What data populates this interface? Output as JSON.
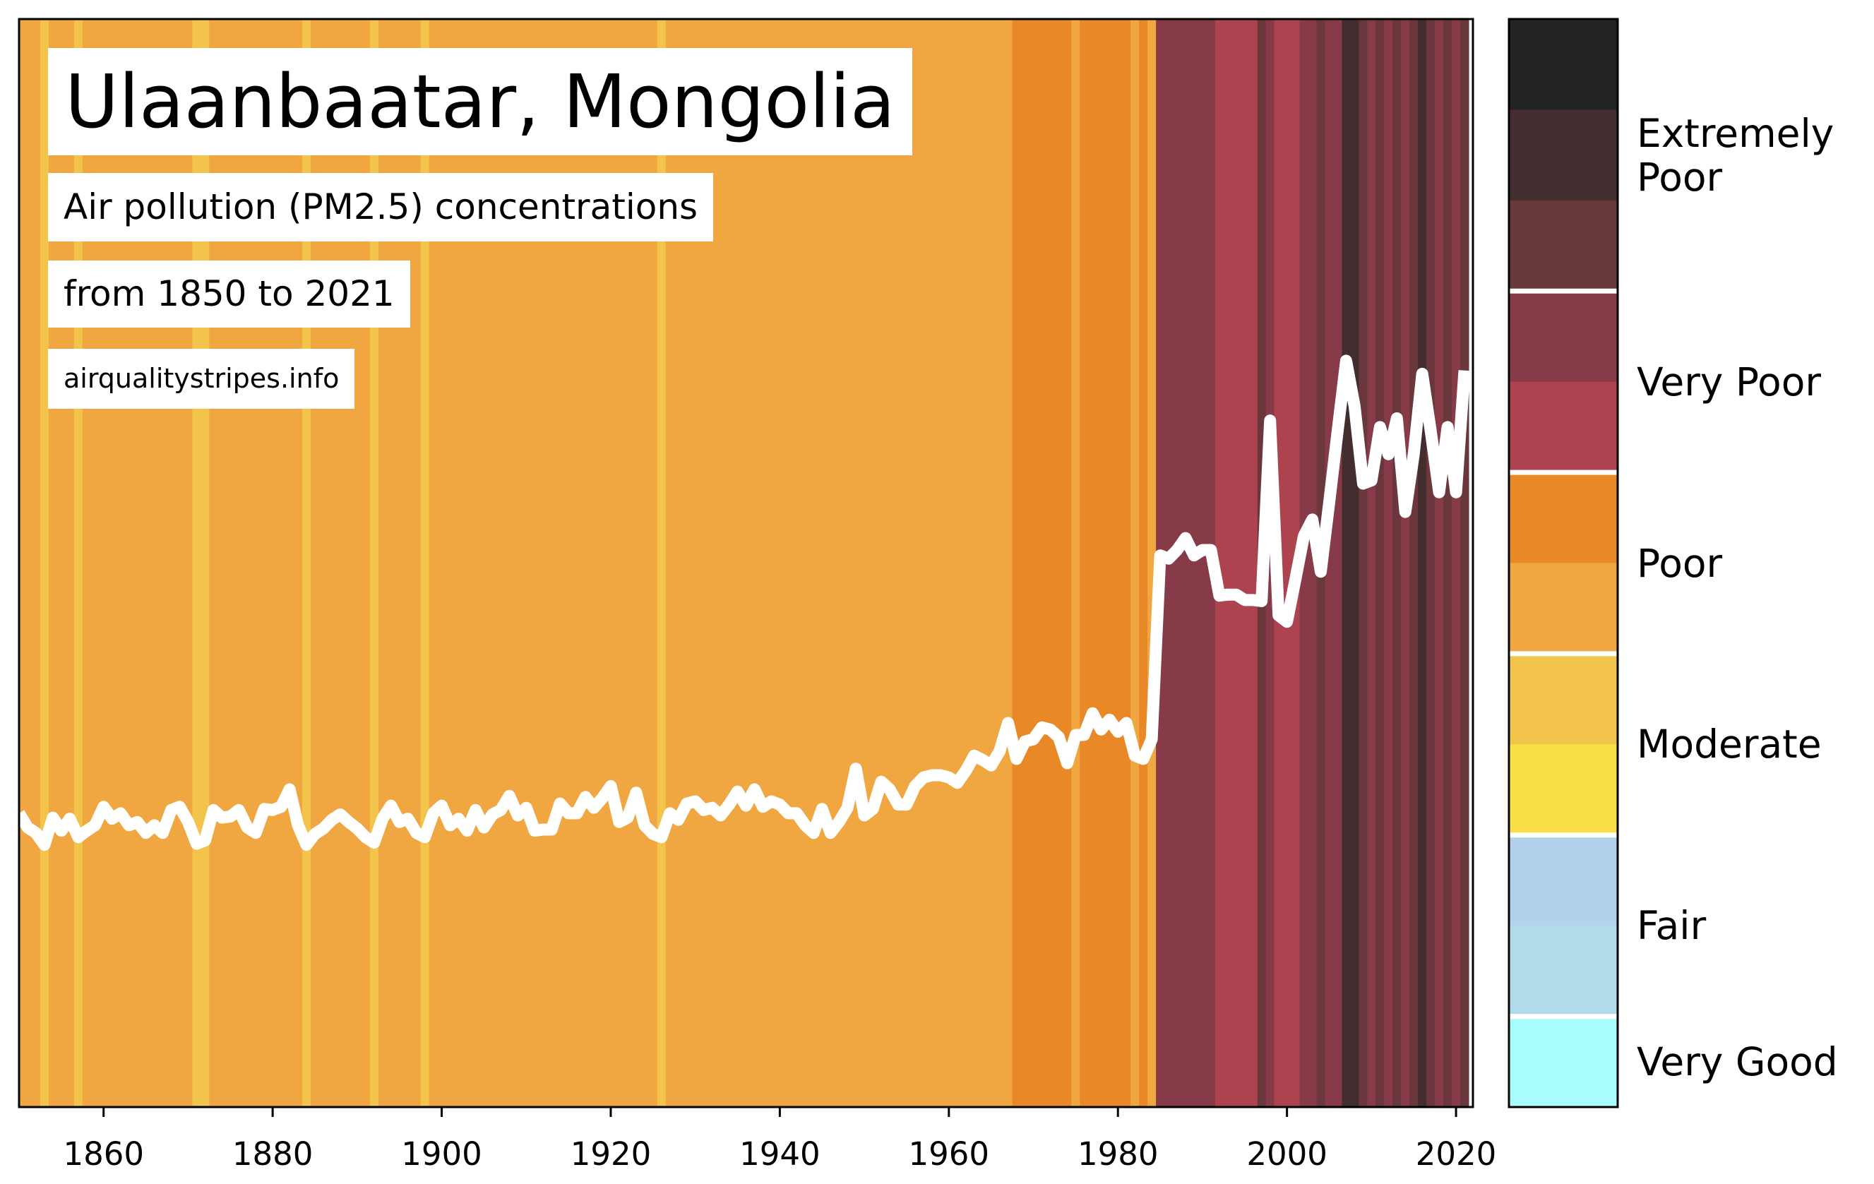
{
  "chart_data": {
    "type": "stripes-line",
    "title": "Ulaanbaatar, Mongolia",
    "subtitle": "Air pollution (PM2.5) concentrations",
    "period": "from 1850 to 2021",
    "source": "airqualitystripes.info",
    "xlim": [
      1850,
      2022
    ],
    "ylim": [
      0,
      100
    ],
    "xticks": [
      1860,
      1880,
      1900,
      1920,
      1940,
      1960,
      1980,
      2000,
      2020
    ],
    "x": [
      1850,
      1851,
      1852,
      1853,
      1854,
      1855,
      1856,
      1857,
      1858,
      1859,
      1860,
      1861,
      1862,
      1863,
      1864,
      1865,
      1866,
      1867,
      1868,
      1869,
      1870,
      1871,
      1872,
      1873,
      1874,
      1875,
      1876,
      1877,
      1878,
      1879,
      1880,
      1881,
      1882,
      1883,
      1884,
      1885,
      1886,
      1887,
      1888,
      1889,
      1890,
      1891,
      1892,
      1893,
      1894,
      1895,
      1896,
      1897,
      1898,
      1899,
      1900,
      1901,
      1902,
      1903,
      1904,
      1905,
      1906,
      1907,
      1908,
      1909,
      1910,
      1911,
      1912,
      1913,
      1914,
      1915,
      1916,
      1917,
      1918,
      1919,
      1920,
      1921,
      1922,
      1923,
      1924,
      1925,
      1926,
      1927,
      1928,
      1929,
      1930,
      1931,
      1932,
      1933,
      1934,
      1935,
      1936,
      1937,
      1938,
      1939,
      1940,
      1941,
      1942,
      1943,
      1944,
      1945,
      1946,
      1947,
      1948,
      1949,
      1950,
      1951,
      1952,
      1953,
      1954,
      1955,
      1956,
      1957,
      1958,
      1959,
      1960,
      1961,
      1962,
      1963,
      1964,
      1965,
      1966,
      1967,
      1968,
      1969,
      1970,
      1971,
      1972,
      1973,
      1974,
      1975,
      1976,
      1977,
      1978,
      1979,
      1980,
      1981,
      1982,
      1983,
      1984,
      1985,
      1986,
      1987,
      1988,
      1989,
      1990,
      1991,
      1992,
      1993,
      1994,
      1995,
      1996,
      1997,
      1998,
      1999,
      2000,
      2001,
      2002,
      2003,
      2004,
      2005,
      2006,
      2007,
      2008,
      2009,
      2010,
      2011,
      2012,
      2013,
      2014,
      2015,
      2016,
      2017,
      2018,
      2019,
      2020,
      2021
    ],
    "series": [
      {
        "color": "#ffffff",
        "values": [
          27.0,
          25.7,
          25.2,
          24.1,
          26.6,
          25.4,
          26.5,
          24.8,
          25.4,
          25.9,
          27.6,
          26.5,
          27.0,
          25.9,
          26.2,
          25.2,
          25.9,
          25.2,
          27.3,
          27.6,
          26.2,
          24.2,
          24.5,
          27.3,
          26.6,
          26.7,
          27.3,
          25.7,
          25.2,
          27.4,
          27.3,
          27.6,
          29.2,
          25.9,
          24.1,
          25.1,
          25.6,
          26.4,
          26.9,
          26.2,
          25.6,
          24.8,
          24.3,
          26.5,
          27.7,
          26.2,
          26.5,
          25.2,
          24.8,
          27.0,
          27.7,
          25.9,
          26.5,
          25.4,
          27.3,
          25.7,
          26.9,
          27.3,
          28.6,
          26.8,
          27.5,
          25.4,
          25.5,
          25.5,
          27.9,
          27.0,
          27.0,
          28.5,
          27.5,
          28.4,
          29.5,
          26.2,
          26.6,
          28.9,
          25.9,
          25.1,
          24.8,
          27.0,
          26.4,
          27.9,
          28.1,
          27.3,
          27.5,
          26.8,
          27.8,
          29.0,
          27.7,
          29.2,
          27.6,
          28.1,
          27.8,
          27.0,
          27.0,
          25.9,
          25.2,
          27.4,
          25.2,
          26.2,
          27.5,
          31.1,
          26.8,
          27.4,
          29.9,
          29.2,
          27.8,
          27.8,
          29.5,
          30.3,
          30.5,
          30.5,
          30.3,
          29.8,
          30.9,
          32.3,
          31.9,
          31.4,
          32.7,
          35.3,
          32.0,
          33.6,
          33.8,
          34.9,
          34.7,
          34.0,
          31.6,
          34.2,
          34.2,
          36.2,
          34.7,
          35.6,
          34.5,
          35.3,
          32.3,
          32.0,
          33.8,
          50.7,
          50.4,
          51.2,
          52.3,
          50.7,
          51.2,
          51.2,
          47.0,
          47.1,
          47.1,
          46.6,
          46.6,
          46.5,
          63.1,
          45.2,
          44.6,
          48.5,
          52.5,
          54.0,
          49.2,
          55.6,
          62.2,
          68.6,
          64.4,
          57.3,
          57.6,
          62.5,
          60.0,
          63.3,
          54.7,
          60.0,
          67.4,
          62.2,
          56.5,
          62.5,
          56.5,
          67.7
        ]
      }
    ],
    "stripes": [
      {
        "start": 1850,
        "end": 1852,
        "color": "#f0a742"
      },
      {
        "start": 1853,
        "end": 1853,
        "color": "#f2c44b"
      },
      {
        "start": 1854,
        "end": 1856,
        "color": "#f0a742"
      },
      {
        "start": 1857,
        "end": 1857,
        "color": "#f2c44b"
      },
      {
        "start": 1858,
        "end": 1870,
        "color": "#f0a742"
      },
      {
        "start": 1871,
        "end": 1872,
        "color": "#f2c44b"
      },
      {
        "start": 1873,
        "end": 1883,
        "color": "#f0a742"
      },
      {
        "start": 1884,
        "end": 1884,
        "color": "#f2c44b"
      },
      {
        "start": 1885,
        "end": 1891,
        "color": "#f0a742"
      },
      {
        "start": 1892,
        "end": 1892,
        "color": "#f2c44b"
      },
      {
        "start": 1893,
        "end": 1897,
        "color": "#f0a742"
      },
      {
        "start": 1898,
        "end": 1898,
        "color": "#f2c44b"
      },
      {
        "start": 1899,
        "end": 1925,
        "color": "#f0a742"
      },
      {
        "start": 1926,
        "end": 1926,
        "color": "#f2c44b"
      },
      {
        "start": 1927,
        "end": 1967,
        "color": "#f0a742"
      },
      {
        "start": 1968,
        "end": 1974,
        "color": "#e88826"
      },
      {
        "start": 1975,
        "end": 1975,
        "color": "#f0a742"
      },
      {
        "start": 1976,
        "end": 1981,
        "color": "#e88826"
      },
      {
        "start": 1982,
        "end": 1982,
        "color": "#f0a742"
      },
      {
        "start": 1983,
        "end": 1983,
        "color": "#e88826"
      },
      {
        "start": 1984,
        "end": 1984,
        "color": "#f0a742"
      },
      {
        "start": 1985,
        "end": 1991,
        "color": "#873a48"
      },
      {
        "start": 1992,
        "end": 1996,
        "color": "#ae4350"
      },
      {
        "start": 1997,
        "end": 1997,
        "color": "#6a383c"
      },
      {
        "start": 1998,
        "end": 1998,
        "color": "#873a48"
      },
      {
        "start": 1999,
        "end": 2001,
        "color": "#ae4350"
      },
      {
        "start": 2002,
        "end": 2003,
        "color": "#873a48"
      },
      {
        "start": 2004,
        "end": 2004,
        "color": "#6a383c"
      },
      {
        "start": 2005,
        "end": 2006,
        "color": "#873a48"
      },
      {
        "start": 2007,
        "end": 2008,
        "color": "#432d2f"
      },
      {
        "start": 2009,
        "end": 2009,
        "color": "#6a383c"
      },
      {
        "start": 2010,
        "end": 2010,
        "color": "#873a48"
      },
      {
        "start": 2011,
        "end": 2011,
        "color": "#6a383c"
      },
      {
        "start": 2012,
        "end": 2012,
        "color": "#873a48"
      },
      {
        "start": 2013,
        "end": 2013,
        "color": "#6a383c"
      },
      {
        "start": 2014,
        "end": 2014,
        "color": "#873a48"
      },
      {
        "start": 2015,
        "end": 2015,
        "color": "#6a383c"
      },
      {
        "start": 2016,
        "end": 2016,
        "color": "#432d2f"
      },
      {
        "start": 2017,
        "end": 2017,
        "color": "#6a383c"
      },
      {
        "start": 2018,
        "end": 2018,
        "color": "#873a48"
      },
      {
        "start": 2019,
        "end": 2019,
        "color": "#6a383c"
      },
      {
        "start": 2020,
        "end": 2020,
        "color": "#873a48"
      },
      {
        "start": 2021,
        "end": 2021,
        "color": "#6a383c"
      }
    ],
    "colorbar": {
      "colors": [
        "#232323",
        "#432d2f",
        "#68393b",
        "#873a48",
        "#ae4350",
        "#e88826",
        "#f0a742",
        "#f2c44b",
        "#f7df46",
        "#b3d1ed",
        "#b1dbe8",
        "#a8fdfd"
      ],
      "categories": [
        {
          "label": "Extremely Poor",
          "bands": 3
        },
        {
          "label": "Very Poor",
          "bands": 2
        },
        {
          "label": "Poor",
          "bands": 2
        },
        {
          "label": "Moderate",
          "bands": 2
        },
        {
          "label": "Fair",
          "bands": 2
        },
        {
          "label": "Very Good",
          "bands": 1
        }
      ]
    }
  }
}
